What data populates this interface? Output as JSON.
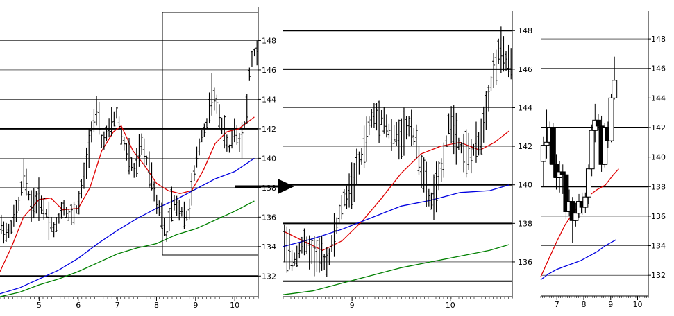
{
  "colors": {
    "price": "#000000",
    "ma_short": "#e00000",
    "ma_mid": "#0000e0",
    "ma_long": "#008000",
    "grid": "#000000"
  },
  "chart_data": [
    {
      "type": "bar",
      "style": "ohlc",
      "ylim": [
        130.6,
        150.0
      ],
      "yticks": [
        132,
        134,
        136,
        138,
        140,
        142,
        144,
        146,
        148
      ],
      "bold_levels": [
        132,
        142
      ],
      "xlim": [
        4.0,
        10.6
      ],
      "xticks": [
        5,
        6,
        7,
        8,
        9,
        10
      ],
      "xtick_labels": [
        "5",
        "6",
        "7",
        "8",
        "9",
        "10"
      ],
      "zoom_box": {
        "x": [
          8.3,
          10.55
        ],
        "y": [
          132.6,
          149.6
        ]
      },
      "price_path": [
        [
          4.0,
          135.5
        ],
        [
          4.2,
          134.8
        ],
        [
          4.5,
          137.0
        ],
        [
          4.6,
          139.0
        ],
        [
          4.8,
          136.8
        ],
        [
          5.0,
          137.2
        ],
        [
          5.2,
          136.2
        ],
        [
          5.4,
          135.0
        ],
        [
          5.6,
          136.8
        ],
        [
          5.8,
          136.0
        ],
        [
          6.0,
          136.7
        ],
        [
          6.2,
          139.5
        ],
        [
          6.35,
          142.2
        ],
        [
          6.5,
          143.2
        ],
        [
          6.6,
          141.0
        ],
        [
          6.8,
          142.0
        ],
        [
          7.0,
          143.2
        ],
        [
          7.1,
          141.5
        ],
        [
          7.3,
          140.0
        ],
        [
          7.45,
          139.0
        ],
        [
          7.6,
          141.0
        ],
        [
          7.8,
          139.5
        ],
        [
          7.9,
          138.5
        ],
        [
          8.0,
          137.0
        ],
        [
          8.1,
          136.5
        ],
        [
          8.25,
          134.5
        ],
        [
          8.4,
          137.0
        ],
        [
          8.6,
          136.5
        ],
        [
          8.8,
          136.0
        ],
        [
          9.0,
          139.5
        ],
        [
          9.15,
          141.5
        ],
        [
          9.3,
          142.5
        ],
        [
          9.4,
          144.5
        ],
        [
          9.55,
          143.5
        ],
        [
          9.7,
          142.0
        ],
        [
          9.85,
          140.5
        ],
        [
          10.0,
          142.0
        ],
        [
          10.15,
          141.0
        ],
        [
          10.3,
          143.0
        ],
        [
          10.4,
          146.5
        ],
        [
          10.5,
          147.2
        ]
      ],
      "series": [
        {
          "key": "ma_short",
          "points": [
            [
              4.0,
              132.3
            ],
            [
              4.3,
              134.0
            ],
            [
              4.6,
              136.0
            ],
            [
              5.0,
              137.2
            ],
            [
              5.3,
              137.3
            ],
            [
              5.6,
              136.5
            ],
            [
              6.0,
              136.6
            ],
            [
              6.3,
              138.0
            ],
            [
              6.6,
              140.5
            ],
            [
              6.9,
              141.8
            ],
            [
              7.1,
              142.2
            ],
            [
              7.4,
              140.5
            ],
            [
              7.7,
              139.5
            ],
            [
              8.0,
              138.3
            ],
            [
              8.3,
              137.8
            ],
            [
              8.6,
              137.6
            ],
            [
              8.9,
              137.8
            ],
            [
              9.2,
              139.2
            ],
            [
              9.5,
              141.0
            ],
            [
              9.8,
              141.8
            ],
            [
              10.1,
              142.0
            ],
            [
              10.3,
              142.4
            ],
            [
              10.5,
              142.8
            ]
          ]
        },
        {
          "key": "ma_mid",
          "points": [
            [
              4.0,
              130.8
            ],
            [
              4.5,
              131.2
            ],
            [
              5.0,
              131.8
            ],
            [
              5.5,
              132.4
            ],
            [
              6.0,
              133.2
            ],
            [
              6.5,
              134.2
            ],
            [
              7.0,
              135.1
            ],
            [
              7.5,
              135.9
            ],
            [
              8.0,
              136.6
            ],
            [
              8.5,
              137.2
            ],
            [
              9.0,
              137.9
            ],
            [
              9.5,
              138.6
            ],
            [
              10.0,
              139.1
            ],
            [
              10.5,
              140.0
            ]
          ]
        },
        {
          "key": "ma_long",
          "points": [
            [
              4.0,
              130.6
            ],
            [
              4.5,
              130.9
            ],
            [
              5.0,
              131.4
            ],
            [
              5.5,
              131.8
            ],
            [
              6.0,
              132.3
            ],
            [
              6.5,
              132.9
            ],
            [
              7.0,
              133.5
            ],
            [
              7.5,
              133.9
            ],
            [
              8.0,
              134.2
            ],
            [
              8.5,
              134.8
            ],
            [
              9.0,
              135.2
            ],
            [
              9.5,
              135.8
            ],
            [
              10.0,
              136.4
            ],
            [
              10.5,
              137.1
            ]
          ]
        }
      ]
    },
    {
      "type": "bar",
      "style": "ohlc",
      "ylim": [
        134.2,
        148.8
      ],
      "yticks": [
        136,
        138,
        140,
        142,
        144,
        146,
        148
      ],
      "bold_levels": [
        135,
        138,
        140,
        146,
        148
      ],
      "xlim": [
        8.3,
        10.63
      ],
      "xticks": [
        9,
        10
      ],
      "xtick_labels": [
        "9",
        "10"
      ],
      "price_path": [
        [
          8.3,
          137.0
        ],
        [
          8.4,
          136.0
        ],
        [
          8.5,
          137.0
        ],
        [
          8.6,
          136.5
        ],
        [
          8.75,
          136.0
        ],
        [
          8.9,
          139.0
        ],
        [
          9.0,
          140.0
        ],
        [
          9.1,
          141.5
        ],
        [
          9.2,
          143.5
        ],
        [
          9.3,
          143.6
        ],
        [
          9.4,
          142.5
        ],
        [
          9.5,
          142.6
        ],
        [
          9.6,
          143.2
        ],
        [
          9.7,
          141.0
        ],
        [
          9.8,
          139.0
        ],
        [
          9.9,
          140.5
        ],
        [
          10.0,
          143.5
        ],
        [
          10.1,
          142.0
        ],
        [
          10.2,
          141.5
        ],
        [
          10.3,
          142.2
        ],
        [
          10.4,
          145.0
        ],
        [
          10.5,
          147.0
        ],
        [
          10.6,
          146.2
        ]
      ],
      "series": [
        {
          "key": "ma_short",
          "points": [
            [
              8.3,
              137.6
            ],
            [
              8.5,
              137.1
            ],
            [
              8.7,
              136.6
            ],
            [
              8.9,
              137.1
            ],
            [
              9.1,
              138.1
            ],
            [
              9.3,
              139.3
            ],
            [
              9.5,
              140.6
            ],
            [
              9.7,
              141.6
            ],
            [
              9.9,
              142.0
            ],
            [
              10.1,
              142.2
            ],
            [
              10.3,
              141.8
            ],
            [
              10.45,
              142.2
            ],
            [
              10.6,
              142.8
            ]
          ]
        },
        {
          "key": "ma_mid",
          "points": [
            [
              8.3,
              136.8
            ],
            [
              8.6,
              137.2
            ],
            [
              8.9,
              137.7
            ],
            [
              9.2,
              138.3
            ],
            [
              9.5,
              138.9
            ],
            [
              9.8,
              139.2
            ],
            [
              10.1,
              139.6
            ],
            [
              10.4,
              139.7
            ],
            [
              10.6,
              140.0
            ]
          ]
        },
        {
          "key": "ma_long",
          "points": [
            [
              8.3,
              134.3
            ],
            [
              8.6,
              134.5
            ],
            [
              8.9,
              134.9
            ],
            [
              9.2,
              135.3
            ],
            [
              9.5,
              135.7
            ],
            [
              9.8,
              136.0
            ],
            [
              10.1,
              136.3
            ],
            [
              10.4,
              136.6
            ],
            [
              10.6,
              136.9
            ]
          ]
        }
      ]
    },
    {
      "type": "bar",
      "style": "candlestick",
      "ylim": [
        130.6,
        149.6
      ],
      "yticks": [
        132,
        134,
        136,
        138,
        140,
        142,
        144,
        146,
        148
      ],
      "bold_levels": [
        138,
        142
      ],
      "xlim": [
        6.4,
        10.4
      ],
      "xticks": [
        7,
        8,
        9,
        10
      ],
      "xtick_labels": [
        "7",
        "8",
        "9",
        "10"
      ],
      "candles": [
        [
          6.5,
          139.7,
          141.4,
          138.0,
          140.8
        ],
        [
          6.62,
          140.8,
          143.2,
          139.9,
          141.0
        ],
        [
          6.74,
          141.0,
          142.4,
          139.5,
          142.0
        ],
        [
          6.86,
          142.0,
          142.3,
          138.6,
          139.5
        ],
        [
          6.98,
          139.5,
          140.2,
          137.8,
          138.6
        ],
        [
          7.1,
          138.6,
          139.7,
          137.6,
          139.0
        ],
        [
          7.22,
          139.0,
          139.5,
          137.5,
          138.8
        ],
        [
          7.34,
          138.8,
          138.9,
          135.8,
          136.3
        ],
        [
          7.46,
          136.3,
          137.8,
          136.0,
          137.0
        ],
        [
          7.58,
          137.0,
          137.3,
          134.2,
          135.7
        ],
        [
          7.7,
          135.7,
          136.9,
          135.3,
          136.2
        ],
        [
          7.82,
          136.2,
          137.5,
          135.9,
          137.0
        ],
        [
          7.94,
          137.0,
          137.6,
          136.1,
          136.6
        ],
        [
          8.06,
          136.6,
          137.6,
          136.2,
          137.3
        ],
        [
          8.18,
          137.3,
          139.5,
          136.8,
          139.2
        ],
        [
          8.3,
          139.2,
          142.2,
          138.7,
          141.8
        ],
        [
          8.42,
          141.8,
          143.6,
          141.0,
          142.5
        ],
        [
          8.54,
          142.5,
          142.9,
          141.8,
          142.1
        ],
        [
          8.66,
          142.1,
          142.8,
          139.0,
          139.5
        ],
        [
          8.78,
          139.5,
          142.3,
          139.3,
          142.0
        ],
        [
          8.9,
          142.0,
          142.4,
          140.6,
          141.1
        ],
        [
          9.02,
          141.1,
          144.3,
          141.0,
          144.0
        ],
        [
          9.14,
          144.0,
          146.8,
          143.9,
          145.2
        ]
      ],
      "series": [
        {
          "key": "ma_short",
          "points": [
            [
              6.4,
              131.9
            ],
            [
              6.7,
              133.1
            ],
            [
              7.0,
              134.3
            ],
            [
              7.3,
              135.4
            ],
            [
              7.6,
              136.2
            ],
            [
              7.9,
              136.9
            ],
            [
              8.2,
              137.4
            ],
            [
              8.5,
              137.8
            ],
            [
              8.8,
              138.1
            ],
            [
              9.1,
              138.8
            ],
            [
              9.3,
              139.2
            ]
          ]
        },
        {
          "key": "ma_mid",
          "points": [
            [
              6.4,
              131.7
            ],
            [
              6.7,
              132.1
            ],
            [
              7.0,
              132.4
            ],
            [
              7.3,
              132.6
            ],
            [
              7.6,
              132.8
            ],
            [
              7.9,
              133.0
            ],
            [
              8.2,
              133.3
            ],
            [
              8.5,
              133.6
            ],
            [
              8.8,
              134.0
            ],
            [
              9.1,
              134.3
            ],
            [
              9.2,
              134.4
            ]
          ]
        }
      ]
    }
  ]
}
